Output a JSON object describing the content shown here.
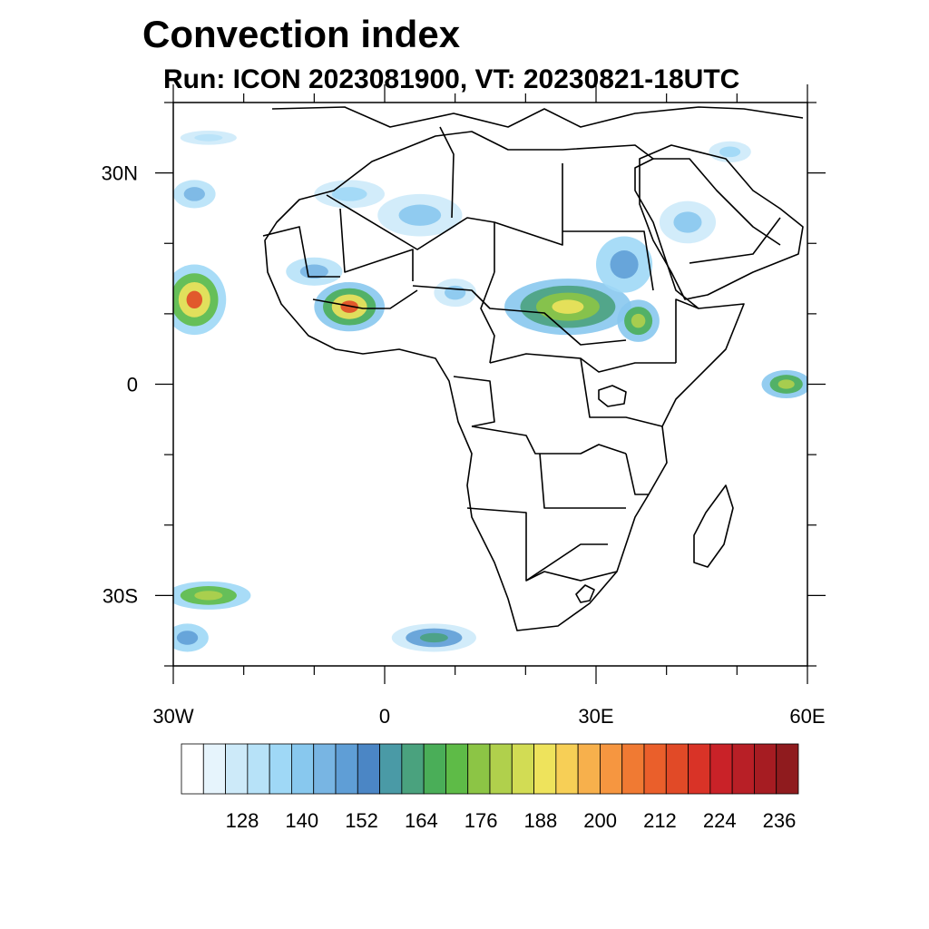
{
  "title": "Convection index",
  "subtitle": "Run: ICON 2023081900,  VT: 20230821-18UTC",
  "map": {
    "lon_range": [
      -30,
      60
    ],
    "lat_range": [
      -40,
      40
    ],
    "lat_ticks": [
      {
        "value": 30,
        "label": "30N"
      },
      {
        "value": 0,
        "label": "0"
      },
      {
        "value": -30,
        "label": "30S"
      }
    ],
    "lon_ticks": [
      {
        "value": -30,
        "label": "30W"
      },
      {
        "value": 0,
        "label": "0"
      },
      {
        "value": 30,
        "label": "30E"
      },
      {
        "value": 60,
        "label": "60E"
      }
    ]
  },
  "colorbar": {
    "colors": [
      "#ffffff",
      "#e6f4fc",
      "#cdeaf9",
      "#b7e2f8",
      "#9fd8f6",
      "#88c8ee",
      "#78b5e3",
      "#5f9ed6",
      "#4b86c5",
      "#4a9aa6",
      "#4aa27e",
      "#4aae58",
      "#5ebb47",
      "#8cc545",
      "#b0d04c",
      "#d2dc54",
      "#eee35c",
      "#f7cf56",
      "#f7b04c",
      "#f69640",
      "#f07a33",
      "#ea5f2b",
      "#e14a27",
      "#d93327",
      "#c92228",
      "#b81f26",
      "#a61c22",
      "#8f1b1e"
    ],
    "labels": [
      "128",
      "140",
      "152",
      "164",
      "176",
      "188",
      "200",
      "212",
      "224",
      "236"
    ]
  },
  "blobs": [
    {
      "name": "atlantic-storm-north",
      "lon": -27,
      "lat": 12,
      "rx": 4.5,
      "ry": 5,
      "colors": [
        "#9fd8f6",
        "#5ebb47",
        "#eee35c",
        "#e14a27"
      ]
    },
    {
      "name": "atlantic-band-south",
      "lon": -25,
      "lat": -30,
      "rx": 6,
      "ry": 2,
      "colors": [
        "#9fd8f6",
        "#5ebb47",
        "#b0d04c"
      ]
    },
    {
      "name": "atlantic-band-far-south",
      "lon": -28,
      "lat": -36,
      "rx": 3,
      "ry": 2,
      "colors": [
        "#9fd8f6",
        "#5f9ed6"
      ]
    },
    {
      "name": "south-atlantic-storm",
      "lon": 7,
      "lat": -36,
      "rx": 6,
      "ry": 2,
      "colors": [
        "#cdeaf9",
        "#5f9ed6",
        "#4aa27e"
      ]
    },
    {
      "name": "west-africa-cluster",
      "lon": -5,
      "lat": 11,
      "rx": 5,
      "ry": 3.5,
      "colors": [
        "#88c8ee",
        "#4aae58",
        "#eee35c",
        "#e14a27"
      ]
    },
    {
      "name": "sahel-west",
      "lon": -10,
      "lat": 16,
      "rx": 4,
      "ry": 2,
      "colors": [
        "#b7e2f8",
        "#78b5e3"
      ]
    },
    {
      "name": "sahel-north",
      "lon": 5,
      "lat": 24,
      "rx": 6,
      "ry": 3,
      "colors": [
        "#cdeaf9",
        "#88c8ee"
      ]
    },
    {
      "name": "algeria-patch",
      "lon": -5,
      "lat": 27,
      "rx": 5,
      "ry": 2,
      "colors": [
        "#cdeaf9",
        "#9fd8f6"
      ]
    },
    {
      "name": "nigeria-patch",
      "lon": 10,
      "lat": 13,
      "rx": 3,
      "ry": 2,
      "colors": [
        "#cdeaf9",
        "#88c8ee"
      ]
    },
    {
      "name": "central-africa-cluster",
      "lon": 26,
      "lat": 11,
      "rx": 9,
      "ry": 4,
      "colors": [
        "#88c8ee",
        "#4aa27e",
        "#8cc545",
        "#eee35c"
      ]
    },
    {
      "name": "sudan-cluster",
      "lon": 34,
      "lat": 17,
      "rx": 4,
      "ry": 4,
      "colors": [
        "#9fd8f6",
        "#5f9ed6"
      ]
    },
    {
      "name": "ethiopia-cluster",
      "lon": 36,
      "lat": 9,
      "rx": 3,
      "ry": 3,
      "colors": [
        "#88c8ee",
        "#4aae58",
        "#b0d04c"
      ]
    },
    {
      "name": "arabia-patch",
      "lon": 43,
      "lat": 23,
      "rx": 4,
      "ry": 3,
      "colors": [
        "#cdeaf9",
        "#88c8ee"
      ]
    },
    {
      "name": "arabia-north-patch",
      "lon": 49,
      "lat": 33,
      "rx": 3,
      "ry": 1.5,
      "colors": [
        "#cdeaf9",
        "#9fd8f6"
      ]
    },
    {
      "name": "indian-ocean-cluster",
      "lon": 57,
      "lat": 0,
      "rx": 3.5,
      "ry": 2,
      "colors": [
        "#88c8ee",
        "#4aae58",
        "#b0d04c"
      ]
    },
    {
      "name": "mediterranean-patch",
      "lon": -25,
      "lat": 35,
      "rx": 4,
      "ry": 1,
      "colors": [
        "#cdeaf9",
        "#b7e2f8"
      ]
    },
    {
      "name": "atlantic-west-patch",
      "lon": -27,
      "lat": 27,
      "rx": 3,
      "ry": 2,
      "colors": [
        "#b7e2f8",
        "#78b5e3"
      ]
    }
  ]
}
